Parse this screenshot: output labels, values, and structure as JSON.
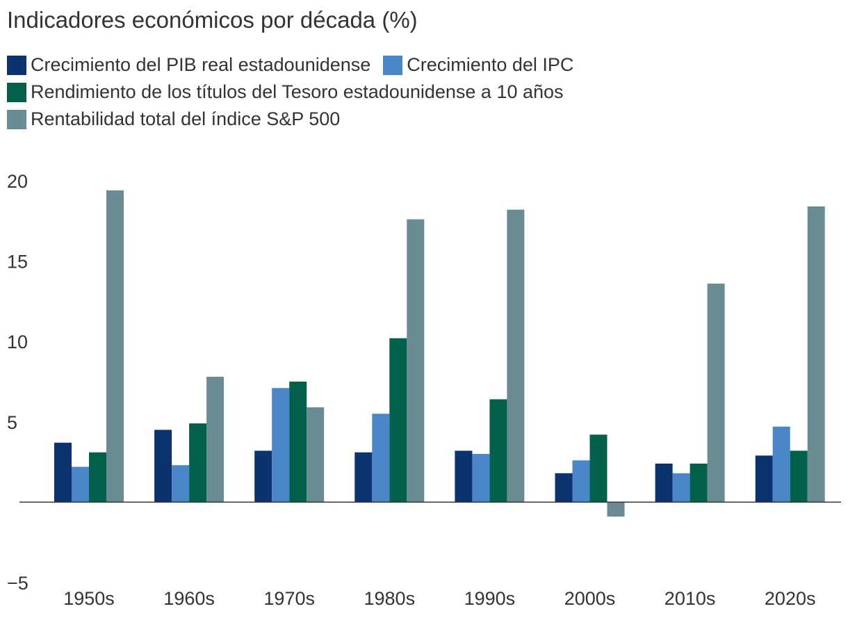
{
  "chart_data": {
    "type": "bar",
    "title": "Indicadores económicos por década (%)",
    "xlabel": "",
    "ylabel": "",
    "categories": [
      "1950s",
      "1960s",
      "1970s",
      "1980s",
      "1990s",
      "2000s",
      "2010s",
      "2020s"
    ],
    "ylim": [
      -5,
      20
    ],
    "yticks": [
      20,
      15,
      10,
      5,
      -5
    ],
    "ytick_labels": [
      "20",
      "15",
      "10",
      "5",
      "−5"
    ],
    "grid": false,
    "legend_position": "top-left",
    "series": [
      {
        "name": "Crecimiento del PIB real estadounidense",
        "color": "#0c3270",
        "values": [
          3.7,
          4.5,
          3.2,
          3.1,
          3.2,
          1.8,
          2.4,
          2.9
        ]
      },
      {
        "name": "Crecimiento del IPC",
        "color": "#4a86c8",
        "values": [
          2.2,
          2.3,
          7.1,
          5.5,
          3.0,
          2.6,
          1.8,
          4.7
        ]
      },
      {
        "name": "Rendimiento de los títulos del Tesoro estadounidense a 10 años",
        "color": "#02604b",
        "values": [
          3.1,
          4.9,
          7.5,
          10.2,
          6.4,
          4.2,
          2.4,
          3.2
        ]
      },
      {
        "name": "Rentabilidad total del índice S&P 500",
        "color": "#688b94",
        "values": [
          19.4,
          7.8,
          5.9,
          17.6,
          18.2,
          -0.9,
          13.6,
          18.4
        ]
      }
    ]
  }
}
